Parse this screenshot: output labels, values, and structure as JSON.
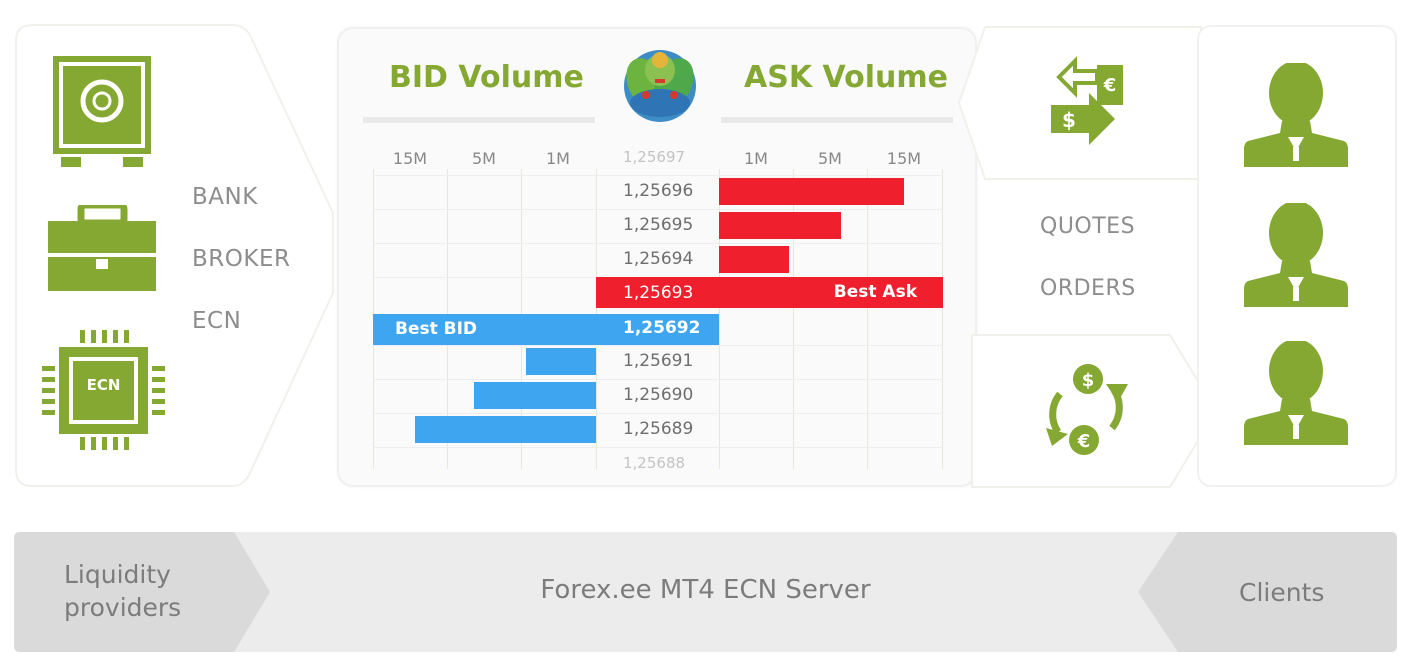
{
  "liquidity": {
    "entities": [
      "BANK",
      "BROKER",
      "ECN"
    ],
    "ecn_chip_label": "ECN"
  },
  "order_book": {
    "bid_title": "BID Volume",
    "ask_title": "ASK Volume",
    "bid_columns": [
      "15M",
      "5M",
      "1M"
    ],
    "ask_columns": [
      "1M",
      "5M",
      "15M"
    ],
    "prices": [
      "1,25697",
      "1,25696",
      "1,25695",
      "1,25694",
      "1,25693",
      "1,25692",
      "1,25691",
      "1,25690",
      "1,25689",
      "1,25688"
    ],
    "best_ask_label": "Best Ask",
    "best_bid_label": "Best BID",
    "ask_volumes": [
      2.5,
      1.65,
      0.95
    ],
    "bid_volumes": [
      0.95,
      1.65,
      2.45
    ],
    "colors": {
      "ask": "#ef1f2d",
      "bid": "#3ea6f0",
      "accent": "#84a832"
    }
  },
  "flows": {
    "quotes_label": "QUOTES",
    "orders_label": "ORDERS",
    "quotes_icon": "currency-exchange-arrows-icon",
    "orders_icon": "currency-cycle-icon",
    "currency_symbols": {
      "dollar": "$",
      "euro": "€"
    }
  },
  "clients": {
    "icon": "user-icon",
    "count": 3
  },
  "banner": {
    "left_tag": [
      "Liquidity",
      "providers"
    ],
    "center": "Forex.ee MT4 ECN Server",
    "right_tag": "Clients"
  }
}
